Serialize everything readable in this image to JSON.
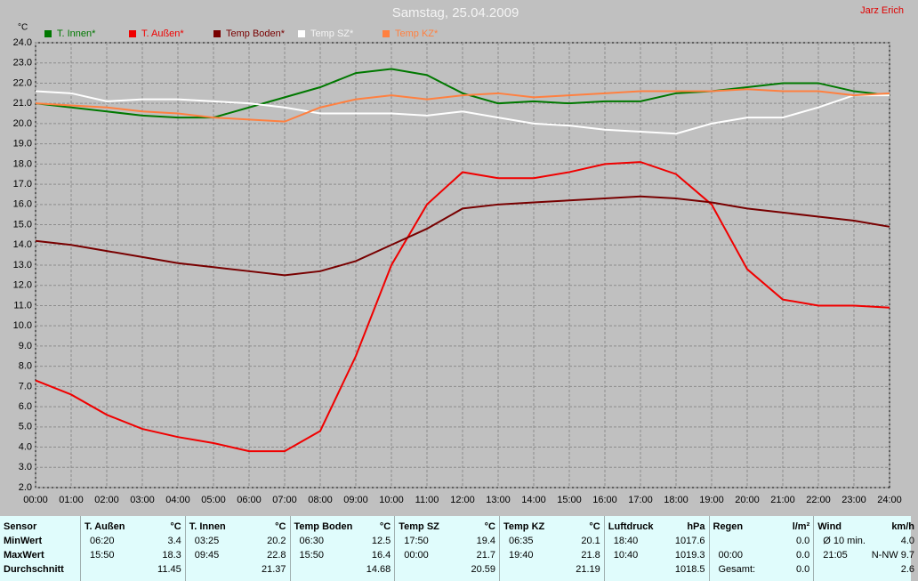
{
  "chart_data": {
    "type": "line",
    "title": "Samstag, 25.04.2009",
    "author": "Jarz Erich",
    "y_label": "°C",
    "x": [
      "00:00",
      "01:00",
      "02:00",
      "03:00",
      "04:00",
      "05:00",
      "06:00",
      "07:00",
      "08:00",
      "09:00",
      "10:00",
      "11:00",
      "12:00",
      "13:00",
      "14:00",
      "15:00",
      "16:00",
      "17:00",
      "18:00",
      "19:00",
      "20:00",
      "21:00",
      "22:00",
      "23:00",
      "24:00"
    ],
    "series": [
      {
        "name": "T. Innen*",
        "color": "#007800",
        "values": [
          21.0,
          20.8,
          20.6,
          20.4,
          20.3,
          20.3,
          20.8,
          21.3,
          21.8,
          22.5,
          22.7,
          22.4,
          21.5,
          21.0,
          21.1,
          21.0,
          21.1,
          21.1,
          21.5,
          21.6,
          21.8,
          22.0,
          22.0,
          21.6,
          21.4
        ]
      },
      {
        "name": "T. Außen*",
        "color": "#f00000",
        "values": [
          7.3,
          6.6,
          5.6,
          4.9,
          4.5,
          4.2,
          3.8,
          3.8,
          4.8,
          8.5,
          13.0,
          16.0,
          17.6,
          17.3,
          17.3,
          17.6,
          18.0,
          18.1,
          17.5,
          16.0,
          12.8,
          11.3,
          11.0,
          11.0,
          10.9
        ]
      },
      {
        "name": "Temp Boden*",
        "color": "#780000",
        "values": [
          14.2,
          14.0,
          13.7,
          13.4,
          13.1,
          12.9,
          12.7,
          12.5,
          12.7,
          13.2,
          14.0,
          14.8,
          15.8,
          16.0,
          16.1,
          16.2,
          16.3,
          16.4,
          16.3,
          16.1,
          15.8,
          15.6,
          15.4,
          15.2,
          14.9
        ]
      },
      {
        "name": "Temp SZ*",
        "color": "#ffffff",
        "values": [
          21.6,
          21.5,
          21.1,
          21.2,
          21.2,
          21.1,
          21.0,
          20.8,
          20.5,
          20.5,
          20.5,
          20.4,
          20.6,
          20.3,
          20.0,
          19.9,
          19.7,
          19.6,
          19.5,
          20.0,
          20.3,
          20.3,
          20.8,
          21.4,
          21.4
        ]
      },
      {
        "name": "Temp KZ*",
        "color": "#ff8040",
        "values": [
          21.0,
          20.9,
          20.8,
          20.6,
          20.5,
          20.3,
          20.2,
          20.1,
          20.8,
          21.2,
          21.4,
          21.2,
          21.4,
          21.5,
          21.3,
          21.4,
          21.5,
          21.6,
          21.6,
          21.6,
          21.7,
          21.6,
          21.6,
          21.4,
          21.5
        ]
      }
    ],
    "ylim": [
      2,
      24
    ],
    "yticks": [
      {
        "value": 2,
        "label": "2.0"
      },
      {
        "value": 3,
        "label": "3.0"
      },
      {
        "value": 4,
        "label": "4.0"
      },
      {
        "value": 5,
        "label": "5.0"
      },
      {
        "value": 6,
        "label": "6.0"
      },
      {
        "value": 7,
        "label": "7.0"
      },
      {
        "value": 8,
        "label": "8.0"
      },
      {
        "value": 9,
        "label": "9.0"
      },
      {
        "value": 10,
        "label": "10.0"
      },
      {
        "value": 11,
        "label": "11.0"
      },
      {
        "value": 12,
        "label": "12.0"
      },
      {
        "value": 13,
        "label": "13.0"
      },
      {
        "value": 14,
        "label": "14.0"
      },
      {
        "value": 15,
        "label": "15.0"
      },
      {
        "value": 16,
        "label": "16.0"
      },
      {
        "value": 17,
        "label": "17.0"
      },
      {
        "value": 18,
        "label": "18.0"
      },
      {
        "value": 19,
        "label": "19.0"
      },
      {
        "value": 20,
        "label": "20.0"
      },
      {
        "value": 21,
        "label": "21.0"
      },
      {
        "value": 22,
        "label": "22.0"
      },
      {
        "value": 23,
        "label": "23.0"
      },
      {
        "value": 24,
        "label": "24.0"
      }
    ],
    "grid": true
  },
  "table": {
    "row_labels": [
      "Sensor",
      "MinWert",
      "MaxWert",
      "Durchschnitt"
    ],
    "groups": [
      {
        "name": "T. Außen",
        "unit": "°C",
        "cells": [
          [
            "06:20",
            "3.4"
          ],
          [
            "15:50",
            "18.3"
          ],
          [
            "11.45"
          ]
        ]
      },
      {
        "name": "T. Innen",
        "unit": "°C",
        "cells": [
          [
            "03:25",
            "20.2"
          ],
          [
            "09:45",
            "22.8"
          ],
          [
            "21.37"
          ]
        ]
      },
      {
        "name": "Temp Boden",
        "unit": "°C",
        "cells": [
          [
            "06:30",
            "12.5"
          ],
          [
            "15:50",
            "16.4"
          ],
          [
            "14.68"
          ]
        ]
      },
      {
        "name": "Temp SZ",
        "unit": "°C",
        "cells": [
          [
            "17:50",
            "19.4"
          ],
          [
            "00:00",
            "21.7"
          ],
          [
            "20.59"
          ]
        ]
      },
      {
        "name": "Temp KZ",
        "unit": "°C",
        "cells": [
          [
            "06:35",
            "20.1"
          ],
          [
            "19:40",
            "21.8"
          ],
          [
            "21.19"
          ]
        ]
      },
      {
        "name": "Luftdruck",
        "unit": "hPa",
        "cells": [
          [
            "18:40",
            "1017.6"
          ],
          [
            "10:40",
            "1019.3"
          ],
          [
            "1018.5"
          ]
        ]
      },
      {
        "name": "Regen",
        "unit": "l/m²",
        "cells": [
          [
            "0.0"
          ],
          [
            "00:00",
            "0.0"
          ],
          [
            "Gesamt:",
            "0.0"
          ]
        ]
      },
      {
        "name": "Wind",
        "unit": "km/h",
        "cells": [
          [
            "Ø 10 min.",
            "4.0"
          ],
          [
            "21:05",
            "N-NW 9.7"
          ],
          [
            "2.6"
          ]
        ]
      }
    ]
  }
}
